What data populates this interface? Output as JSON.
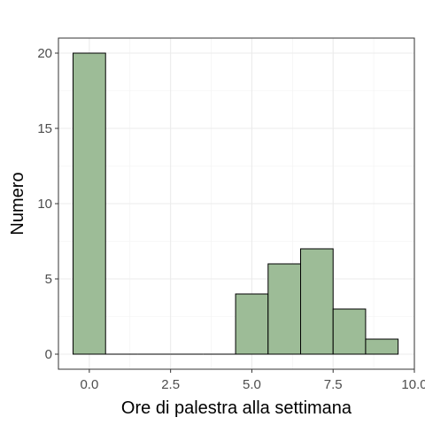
{
  "chart_data": {
    "type": "bar",
    "subtype": "histogram",
    "bin_width": 1,
    "bins": [
      {
        "center": 0,
        "count": 20
      },
      {
        "center": 1,
        "count": 0
      },
      {
        "center": 2,
        "count": 0
      },
      {
        "center": 3,
        "count": 0
      },
      {
        "center": 4,
        "count": 0
      },
      {
        "center": 5,
        "count": 4
      },
      {
        "center": 6,
        "count": 6
      },
      {
        "center": 7,
        "count": 7
      },
      {
        "center": 8,
        "count": 3
      },
      {
        "center": 9,
        "count": 1
      }
    ],
    "xlabel": "Ore di palestra alla settimana",
    "ylabel": "Numero",
    "xlim": [
      -0.95,
      10.0
    ],
    "ylim": [
      -1.0,
      21.0
    ],
    "x_ticks": [
      0,
      2.5,
      5,
      7.5,
      10
    ],
    "x_tick_labels": [
      "0.0",
      "2.5",
      "5.0",
      "7.5",
      "10.0"
    ],
    "y_ticks": [
      0,
      5,
      10,
      15,
      20
    ],
    "y_tick_labels": [
      "0",
      "5",
      "10",
      "15",
      "20"
    ],
    "grid": true,
    "bar_fill": "#9dbc97",
    "bar_edge": "#000000",
    "grid_color": "#ebebeb",
    "border_color": "#333333"
  }
}
